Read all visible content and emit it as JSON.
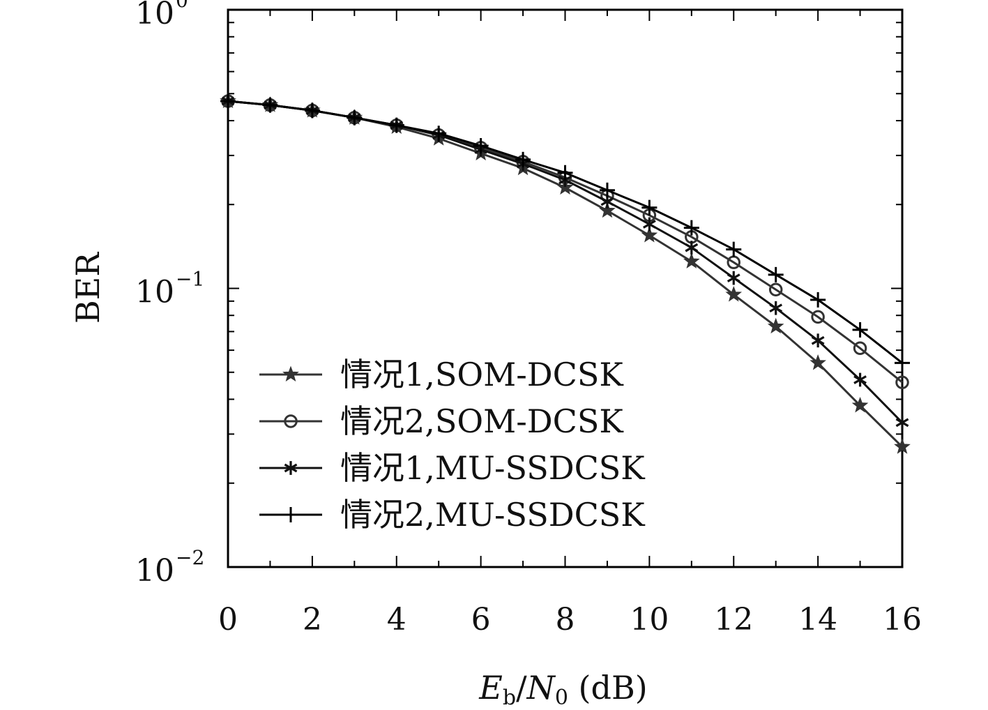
{
  "chart_data": {
    "type": "line",
    "xlabel": {
      "main": "E",
      "sub1": "b",
      "slash": "/",
      "main2": "N",
      "sub2": "0",
      "unit": " (dB)"
    },
    "ylabel": "BER",
    "xlim": [
      0,
      16
    ],
    "ylim": [
      0.01,
      1
    ],
    "yscale": "log",
    "x_ticks": [
      "0",
      "2",
      "4",
      "6",
      "8",
      "10",
      "12",
      "14",
      "16"
    ],
    "y_ticks": [
      {
        "value": 1,
        "base": "10",
        "exp": "0"
      },
      {
        "value": 0.1,
        "base": "10",
        "exp": "−1"
      },
      {
        "value": 0.01,
        "base": "10",
        "exp": "−2"
      }
    ],
    "legend_position": "lower-left",
    "x": [
      0,
      1,
      2,
      3,
      4,
      5,
      6,
      7,
      8,
      9,
      10,
      11,
      12,
      13,
      14,
      15,
      16
    ],
    "series": [
      {
        "name": "情况1,SOM-DCSK",
        "marker": "star",
        "color": "#333333",
        "values": [
          0.47,
          0.455,
          0.435,
          0.41,
          0.38,
          0.345,
          0.305,
          0.27,
          0.23,
          0.19,
          0.155,
          0.125,
          0.095,
          0.073,
          0.054,
          0.038,
          0.027
        ]
      },
      {
        "name": "情况2,SOM-DCSK",
        "marker": "circle",
        "color": "#333333",
        "values": [
          0.47,
          0.455,
          0.435,
          0.41,
          0.385,
          0.355,
          0.32,
          0.285,
          0.25,
          0.215,
          0.183,
          0.153,
          0.124,
          0.099,
          0.079,
          0.061,
          0.046
        ]
      },
      {
        "name": "情况1,MU-SSDCSK",
        "marker": "asterisk",
        "color": "#111111",
        "values": [
          0.47,
          0.455,
          0.435,
          0.41,
          0.385,
          0.355,
          0.315,
          0.28,
          0.245,
          0.205,
          0.17,
          0.14,
          0.109,
          0.085,
          0.065,
          0.047,
          0.033
        ]
      },
      {
        "name": "情况2,MU-SSDCSK",
        "marker": "plus",
        "color": "#000000",
        "values": [
          0.47,
          0.455,
          0.435,
          0.41,
          0.385,
          0.36,
          0.325,
          0.29,
          0.26,
          0.225,
          0.195,
          0.165,
          0.138,
          0.112,
          0.091,
          0.071,
          0.054
        ]
      }
    ]
  }
}
